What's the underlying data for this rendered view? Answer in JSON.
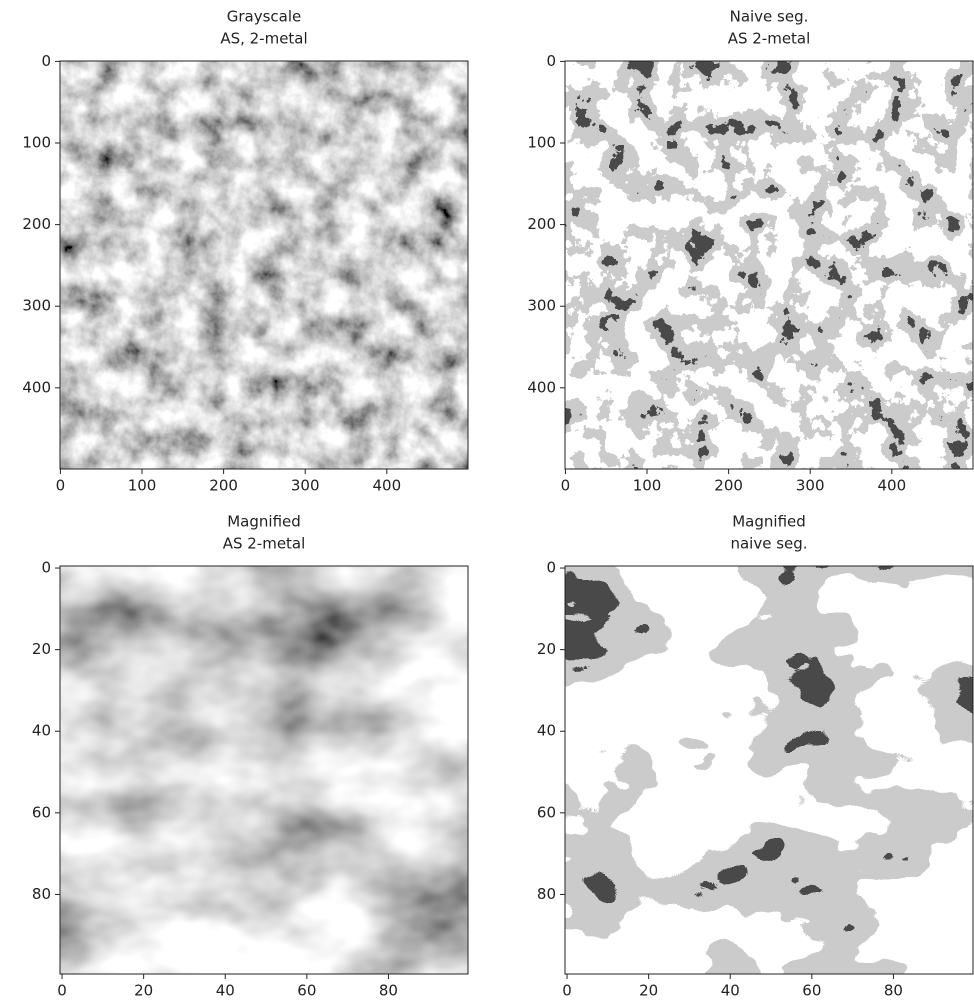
{
  "chart_data": [
    {
      "type": "image",
      "title": [
        "Grayscale",
        "AS, 2-metal"
      ],
      "xlim": [
        -0.5,
        499.5
      ],
      "ylim": [
        499.5,
        -0.5
      ],
      "xticks": [
        0,
        100,
        200,
        300,
        400
      ],
      "yticks": [
        0,
        100,
        200,
        300,
        400
      ]
    },
    {
      "type": "image",
      "title": [
        "Naive seg.",
        "AS 2-metal"
      ],
      "xlim": [
        -0.5,
        499.5
      ],
      "ylim": [
        499.5,
        -0.5
      ],
      "xticks": [
        0,
        100,
        200,
        300,
        400
      ],
      "yticks": [
        0,
        100,
        200,
        300,
        400
      ]
    },
    {
      "type": "image",
      "title": [
        "Magnified",
        "AS 2-metal"
      ],
      "xlim": [
        -0.5,
        99.5
      ],
      "ylim": [
        99.5,
        -0.5
      ],
      "xticks": [
        0,
        20,
        40,
        60,
        80
      ],
      "yticks": [
        0,
        20,
        40,
        60,
        80
      ]
    },
    {
      "type": "image",
      "title": [
        "Magnified",
        "naive seg."
      ],
      "xlim": [
        -0.5,
        99.5
      ],
      "ylim": [
        99.5,
        -0.5
      ],
      "xticks": [
        0,
        20,
        40,
        60,
        80
      ],
      "yticks": [
        0,
        20,
        40,
        60,
        80
      ]
    }
  ]
}
